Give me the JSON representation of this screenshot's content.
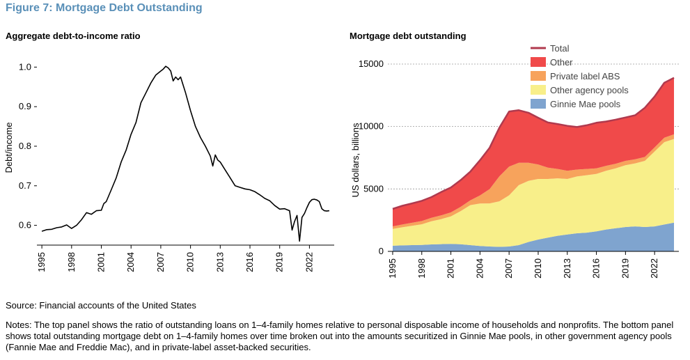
{
  "figure": {
    "title": "Figure 7: Mortgage Debt Outstanding",
    "source": "Source: Financial accounts of the United States",
    "notes": "Notes: The top panel shows the ratio of outstanding loans on 1–4-family homes relative to personal disposable income of households and nonprofits. The bottom panel shows total outstanding mortgage debt on 1–4-family homes over time broken out into the amounts securitized in Ginnie Mae pools, in other government agency pools (Fannie Mae and Freddie Mac), and in private-label asset-backed securities."
  },
  "chart_data": [
    {
      "type": "line",
      "title": "Aggregate debt-to-income ratio",
      "xlabel": "",
      "ylabel": "Debt/income",
      "xlim": [
        1994.5,
        2024.5
      ],
      "ylim": [
        0.55,
        1.02
      ],
      "yticks": [
        0.6,
        0.7,
        0.8,
        0.9,
        1.0
      ],
      "yticklabels": [
        "0.6",
        "0.7",
        "0.8",
        "0.9",
        "1.0"
      ],
      "xticks": [
        1995,
        1998,
        2001,
        2004,
        2007,
        2010,
        2013,
        2016,
        2019,
        2022
      ],
      "grid": false,
      "color": "#000000",
      "series": [
        {
          "x": [
            1995,
            1995.5,
            1996,
            1996.5,
            1997,
            1997.5,
            1998,
            1998.5,
            1999,
            1999.5,
            2000,
            2000.5,
            2001,
            2001.25,
            2001.5,
            2002,
            2002.5,
            2003,
            2003.5,
            2004,
            2004.5,
            2005,
            2005.5,
            2006,
            2006.5,
            2007,
            2007.25,
            2007.5,
            2007.75,
            2008,
            2008.25,
            2008.5,
            2008.75,
            2009,
            2009.5,
            2010,
            2010.5,
            2011,
            2011.5,
            2012,
            2012.25,
            2012.5,
            2012.75,
            2013,
            2013.5,
            2014,
            2014.5,
            2015,
            2015.5,
            2016,
            2016.5,
            2017,
            2017.5,
            2018,
            2018.5,
            2019,
            2019.5,
            2020,
            2020.25,
            2020.5,
            2020.75,
            2021,
            2021.25,
            2021.5,
            2021.75,
            2022,
            2022.25,
            2022.5,
            2022.75,
            2023,
            2023.25,
            2023.5,
            2023.75,
            2024
          ],
          "y": [
            0.585,
            0.589,
            0.59,
            0.594,
            0.596,
            0.601,
            0.592,
            0.6,
            0.614,
            0.632,
            0.628,
            0.637,
            0.638,
            0.655,
            0.66,
            0.69,
            0.72,
            0.76,
            0.79,
            0.83,
            0.86,
            0.91,
            0.935,
            0.96,
            0.98,
            0.99,
            0.995,
            1.002,
            0.998,
            0.99,
            0.965,
            0.975,
            0.968,
            0.975,
            0.935,
            0.89,
            0.85,
            0.822,
            0.8,
            0.775,
            0.75,
            0.778,
            0.765,
            0.76,
            0.74,
            0.72,
            0.7,
            0.696,
            0.692,
            0.69,
            0.685,
            0.677,
            0.668,
            0.662,
            0.65,
            0.641,
            0.642,
            0.637,
            0.588,
            0.61,
            0.625,
            0.56,
            0.62,
            0.63,
            0.645,
            0.658,
            0.665,
            0.666,
            0.664,
            0.66,
            0.642,
            0.637,
            0.636,
            0.637
          ]
        }
      ]
    },
    {
      "type": "area",
      "stacked": true,
      "title": "Mortgage debt outstanding",
      "xlabel": "",
      "ylabel": "US dollars, billions",
      "xlim": [
        1994.5,
        2024.5
      ],
      "ylim": [
        0,
        15500
      ],
      "yticks": [
        0,
        5000,
        10000,
        15000
      ],
      "yticklabels": [
        "0",
        "5000",
        "10000",
        "15000"
      ],
      "xticks": [
        1995,
        1998,
        2001,
        2004,
        2007,
        2010,
        2013,
        2016,
        2019,
        2022
      ],
      "grid": true,
      "legend_position": "top-right",
      "x": [
        1995,
        1996,
        1997,
        1998,
        1999,
        2000,
        2001,
        2002,
        2003,
        2004,
        2005,
        2006,
        2007,
        2008,
        2009,
        2010,
        2011,
        2012,
        2013,
        2014,
        2015,
        2016,
        2017,
        2018,
        2019,
        2020,
        2021,
        2022,
        2023,
        2024
      ],
      "series": [
        {
          "name": "Ginnie Mae pools",
          "color": "#7fa4cf",
          "values": [
            450,
            480,
            500,
            520,
            560,
            580,
            600,
            570,
            500,
            430,
            390,
            360,
            390,
            500,
            750,
            950,
            1100,
            1250,
            1350,
            1450,
            1500,
            1600,
            1750,
            1850,
            1950,
            2000,
            1950,
            2000,
            2150,
            2300
          ]
        },
        {
          "name": "Other agency pools",
          "color": "#f8ef8a",
          "values": [
            1350,
            1450,
            1550,
            1650,
            1850,
            2000,
            2200,
            2650,
            3200,
            3400,
            3450,
            3650,
            4100,
            4800,
            4900,
            4850,
            4700,
            4600,
            4450,
            4550,
            4600,
            4600,
            4700,
            4800,
            4950,
            5050,
            5300,
            6000,
            6600,
            6700
          ]
        },
        {
          "name": "Private label ABS",
          "color": "#f7a35c",
          "values": [
            200,
            220,
            240,
            260,
            280,
            300,
            320,
            340,
            380,
            650,
            1150,
            2000,
            2300,
            1800,
            1450,
            1150,
            900,
            750,
            650,
            550,
            500,
            450,
            400,
            370,
            350,
            320,
            310,
            330,
            350,
            370
          ]
        },
        {
          "name": "Other",
          "color": "#f04a4a",
          "values": [
            1400,
            1500,
            1550,
            1620,
            1660,
            1870,
            2000,
            2140,
            2300,
            2820,
            3310,
            3890,
            4410,
            4200,
            4000,
            3750,
            3620,
            3600,
            3600,
            3410,
            3500,
            3650,
            3550,
            3530,
            3470,
            3530,
            3940,
            4070,
            4400,
            4530
          ]
        },
        {
          "name": "Total",
          "color": "#b03a4e",
          "line": true,
          "values": [
            3400,
            3650,
            3840,
            4050,
            4350,
            4750,
            5120,
            5700,
            6380,
            7300,
            8300,
            9900,
            11200,
            11300,
            11100,
            10700,
            10320,
            10200,
            10050,
            9960,
            10100,
            10300,
            10400,
            10550,
            10720,
            10900,
            11500,
            12400,
            13500,
            13900
          ]
        }
      ],
      "legend": [
        "Total",
        "Other",
        "Private label ABS",
        "Other agency pools",
        "Ginnie Mae pools"
      ]
    }
  ]
}
